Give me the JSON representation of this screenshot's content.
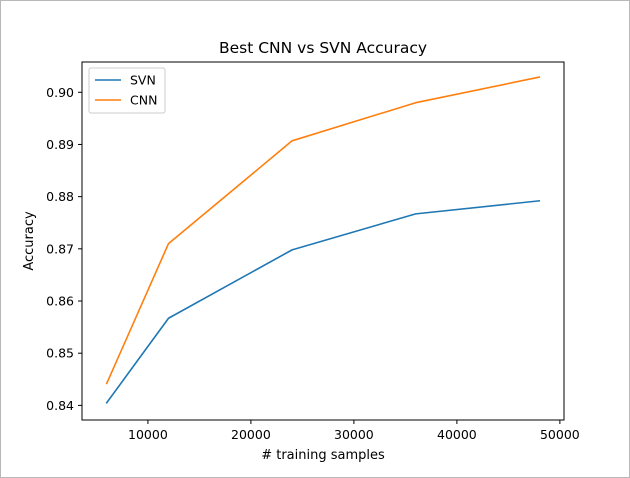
{
  "chart_data": {
    "type": "line",
    "title": "Best CNN vs SVN Accuracy",
    "xlabel": "# training samples",
    "ylabel": "Accuracy",
    "xlim": [
      3600,
      50400
    ],
    "ylim": [
      0.8372,
      0.9058
    ],
    "xticks": [
      10000,
      20000,
      30000,
      40000,
      50000
    ],
    "xtick_labels": [
      "10000",
      "20000",
      "30000",
      "40000",
      "50000"
    ],
    "yticks": [
      0.84,
      0.85,
      0.86,
      0.87,
      0.88,
      0.89,
      0.9
    ],
    "ytick_labels": [
      "0.84",
      "0.85",
      "0.86",
      "0.87",
      "0.88",
      "0.89",
      "0.90"
    ],
    "grid": false,
    "legend_position": "top-left",
    "x": [
      6000,
      12000,
      24000,
      36000,
      48000
    ],
    "series": [
      {
        "name": "SVN",
        "color": "#1f77b4",
        "values": [
          0.8405,
          0.8567,
          0.8698,
          0.8767,
          0.8792
        ]
      },
      {
        "name": "CNN",
        "color": "#ff7f0e",
        "values": [
          0.8442,
          0.871,
          0.8907,
          0.898,
          0.9029
        ]
      }
    ]
  }
}
